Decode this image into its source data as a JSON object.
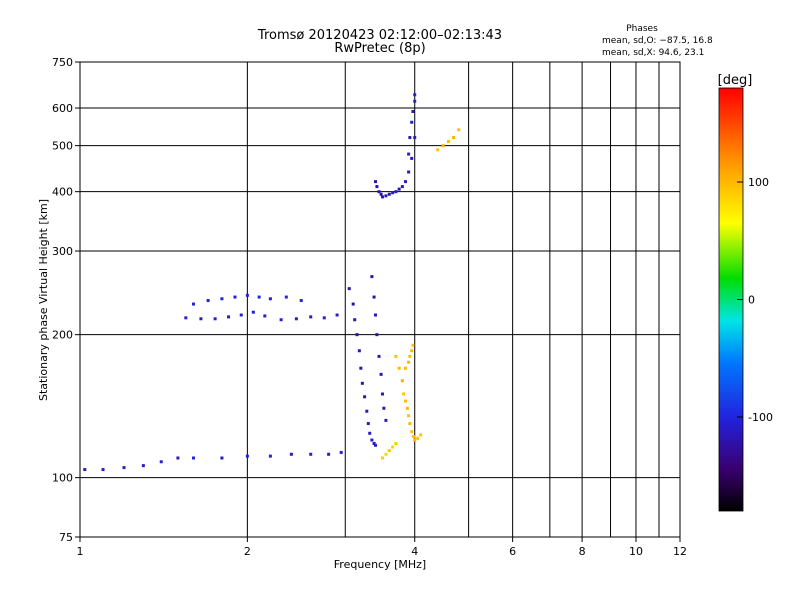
{
  "chart_data": {
    "type": "scatter",
    "title": "Tromsø 20120423 02:12:00–02:13:43",
    "subtitle": "RwPretec (8p)",
    "xlabel": "Frequency [MHz]",
    "ylabel": "Stationary phase Virtual Height [km]",
    "x_scale": "log",
    "y_scale": "log",
    "xlim": [
      1,
      12
    ],
    "ylim": [
      75,
      750
    ],
    "x_ticks": [
      1,
      2,
      4,
      6,
      8,
      10,
      12
    ],
    "y_ticks": [
      75,
      100,
      200,
      300,
      400,
      500,
      600,
      750
    ],
    "x_tick_labels": [
      "1",
      "2",
      "4",
      "6",
      "8",
      "10",
      "12"
    ],
    "y_tick_labels": [
      "75",
      "100",
      "200",
      "300",
      "400",
      "500",
      "600",
      "750"
    ],
    "x_minor_ticks": [
      3,
      5,
      7,
      9,
      11
    ],
    "grid": true,
    "phases": {
      "title": "Phases",
      "line_o": "mean, sd,O: −87.5, 16.8",
      "line_x": "mean, sd,X:  94.6, 23.1"
    },
    "colorbar": {
      "label": "[deg]",
      "range": [
        -180,
        180
      ],
      "ticks": [
        100,
        0,
        -100
      ],
      "tick_labels": [
        "100",
        "0",
        "-100"
      ]
    },
    "series": [
      {
        "traces": [
          {
            "x": [
              1.02,
              1.1,
              1.2,
              1.3,
              1.4,
              1.5,
              1.6,
              1.8,
              2.0,
              2.2,
              2.4,
              2.6,
              2.8,
              2.95
            ],
            "y": [
              104,
              104,
              105,
              106,
              108,
              110,
              110,
              110,
              111,
              111,
              112,
              112,
              112,
              113
            ],
            "phase": [
              -108,
              -110,
              -105,
              -112,
              -100,
              -108,
              -104,
              -110,
              -106,
              -102,
              -108,
              -104,
              -110,
              -106
            ]
          },
          {
            "x": [
              1.55,
              1.65,
              1.75,
              1.85,
              1.95,
              2.05,
              2.15,
              2.3,
              2.45,
              2.6,
              2.75,
              2.9
            ],
            "y": [
              217,
              216,
              216,
              218,
              220,
              223,
              219,
              215,
              216,
              218,
              217,
              220
            ],
            "phase": [
              -105,
              -108,
              -104,
              -110,
              -100,
              -106,
              -108,
              -102,
              -106,
              -110,
              -104,
              -108
            ]
          },
          {
            "x": [
              1.6,
              1.7,
              1.8,
              1.9,
              2.0,
              2.1,
              2.2,
              2.35,
              2.5
            ],
            "y": [
              232,
              236,
              238,
              240,
              242,
              240,
              238,
              240,
              236
            ],
            "phase": [
              -100,
              -104,
              -98,
              -106,
              -102,
              -100,
              -108,
              -104,
              -100
            ]
          },
          {
            "x": [
              3.05,
              3.1,
              3.12,
              3.15,
              3.18,
              3.2,
              3.22,
              3.25,
              3.28,
              3.3,
              3.32,
              3.35,
              3.38,
              3.4
            ],
            "y": [
              250,
              232,
              215,
              200,
              185,
              170,
              158,
              148,
              138,
              130,
              124,
              120,
              118,
              117
            ],
            "phase": [
              -120,
              -125,
              -118,
              -122,
              -115,
              -120,
              -124,
              -118,
              -115,
              -112,
              -110,
              -108,
              -112,
              -110
            ]
          },
          {
            "x": [
              3.35,
              3.38,
              3.4,
              3.42,
              3.45,
              3.48,
              3.5,
              3.52,
              3.55
            ],
            "y": [
              265,
              240,
              220,
              200,
              180,
              165,
              150,
              140,
              132
            ],
            "phase": [
              -118,
              -122,
              -116,
              -120,
              -114,
              -118,
              -112,
              -116,
              -110
            ]
          },
          {
            "x": [
              3.4,
              3.42,
              3.45,
              3.48,
              3.5,
              3.55,
              3.6,
              3.65,
              3.7,
              3.75,
              3.8,
              3.85,
              3.9,
              3.95,
              4.0
            ],
            "y": [
              420,
              410,
              400,
              395,
              390,
              392,
              395,
              398,
              400,
              405,
              410,
              420,
              440,
              470,
              520
            ],
            "phase": [
              -115,
              -120,
              -118,
              -122,
              -116,
              -112,
              -118,
              -114,
              -110,
              -116,
              -112,
              -108,
              -114,
              -110,
              -106
            ]
          },
          {
            "x": [
              3.9,
              3.92,
              3.95,
              3.97,
              4.0,
              4.0
            ],
            "y": [
              480,
              520,
              560,
              590,
              620,
              640
            ],
            "phase": [
              -108,
              -112,
              -106,
              -110,
              -104,
              -100
            ]
          },
          {
            "x": [
              3.7,
              3.75,
              3.8,
              3.82,
              3.85,
              3.88,
              3.9,
              3.92,
              3.95,
              3.98,
              4.0,
              4.05,
              4.1
            ],
            "y": [
              180,
              170,
              160,
              150,
              145,
              140,
              135,
              130,
              125,
              122,
              120,
              121,
              123
            ],
            "phase": [
              95,
              100,
              105,
              92,
              98,
              102,
              96,
              100,
              94,
              98,
              102,
              96,
              92
            ]
          },
          {
            "x": [
              3.5,
              3.55,
              3.6,
              3.65,
              3.7
            ],
            "y": [
              110,
              112,
              114,
              116,
              118
            ],
            "phase": [
              90,
              85,
              95,
              88,
              92
            ]
          },
          {
            "x": [
              3.85,
              3.9,
              3.92,
              3.95,
              3.97
            ],
            "y": [
              170,
              175,
              180,
              185,
              190
            ],
            "phase": [
              98,
              102,
              96,
              100,
              94
            ]
          },
          {
            "x": [
              4.4,
              4.5,
              4.6,
              4.7,
              4.8
            ],
            "y": [
              490,
              500,
              510,
              520,
              540
            ],
            "phase": [
              95,
              102,
              98,
              104,
              96
            ]
          }
        ]
      }
    ]
  }
}
